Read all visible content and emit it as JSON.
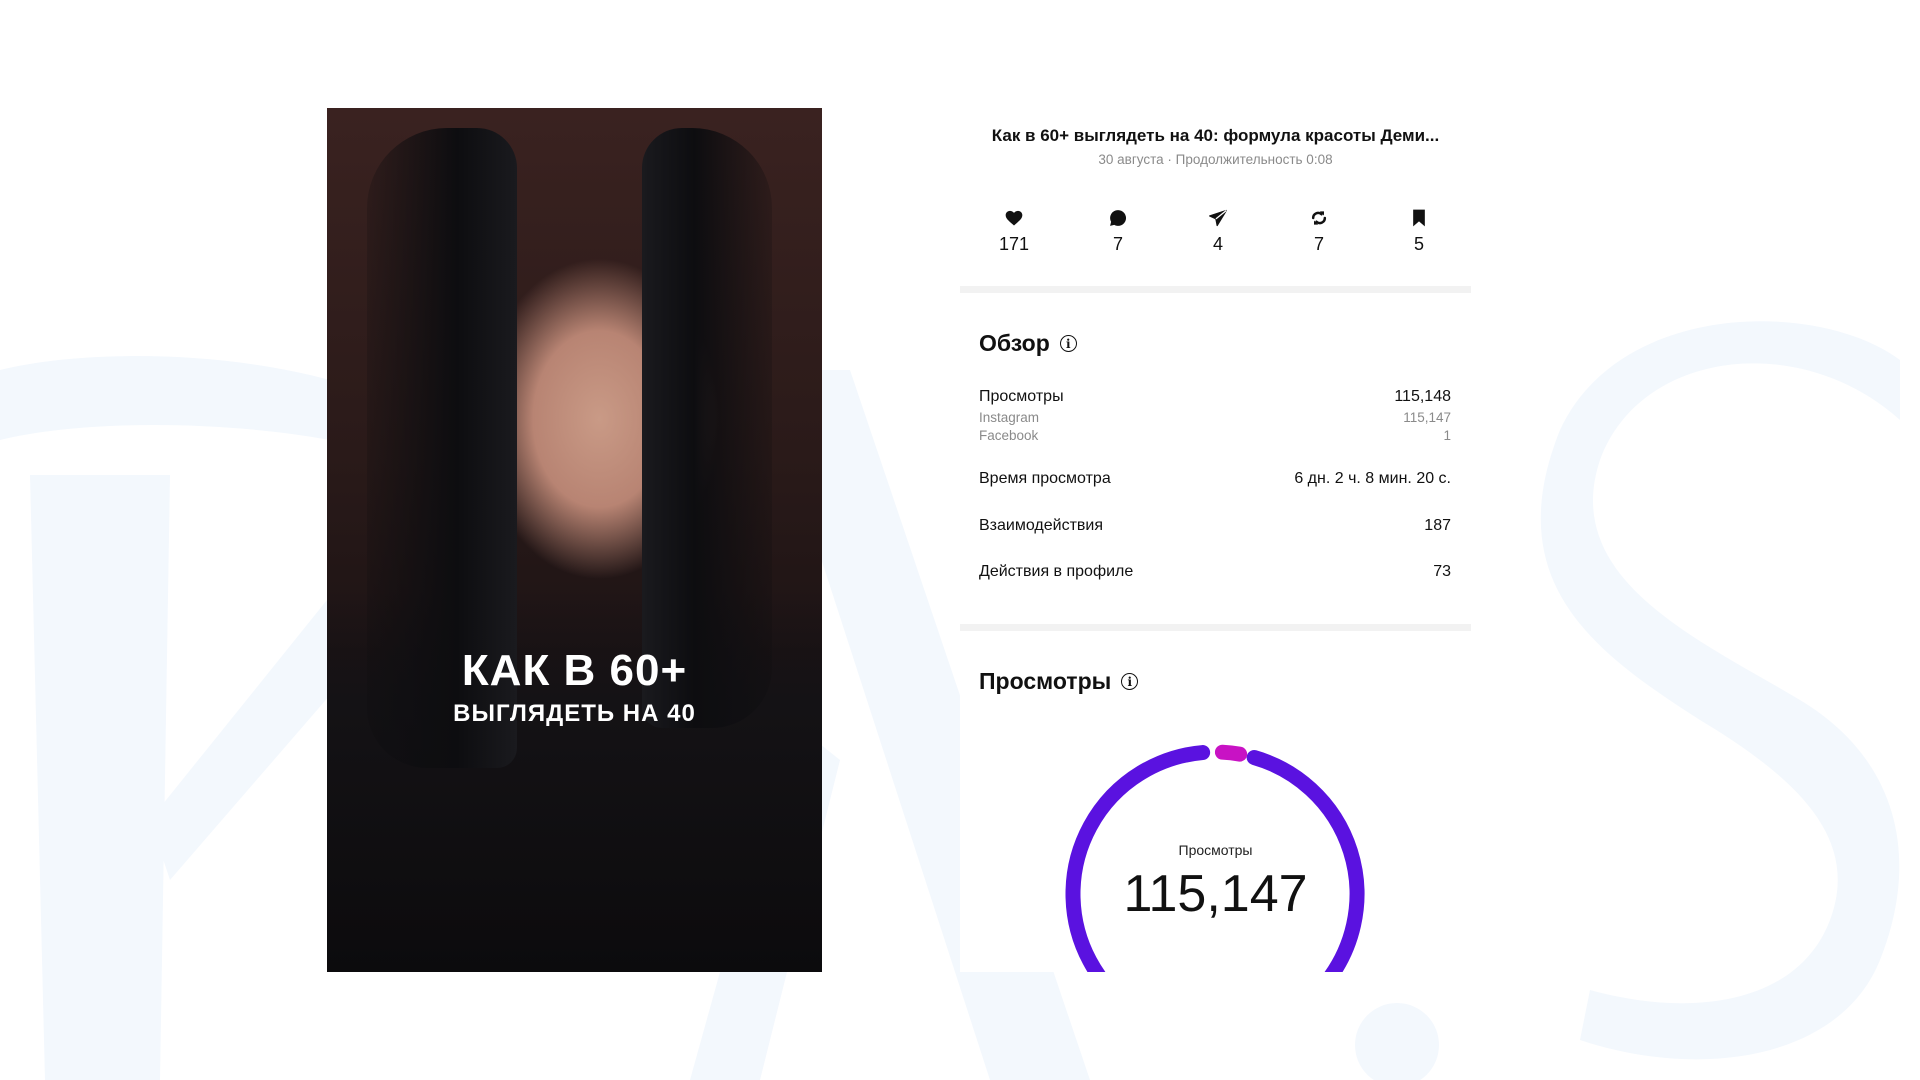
{
  "post": {
    "title": "Как в 60+ выглядеть на 40: формула красоты Деми...",
    "subtitle": "30 августа · Продолжительность 0:08",
    "overlay_line1": "КАК В 60+",
    "overlay_line2": "ВЫГЛЯДЕТЬ НА 40"
  },
  "stats": [
    {
      "icon": "heart-icon",
      "value": "171"
    },
    {
      "icon": "comment-icon",
      "value": "7"
    },
    {
      "icon": "share-icon",
      "value": "4"
    },
    {
      "icon": "repost-icon",
      "value": "7"
    },
    {
      "icon": "bookmark-icon",
      "value": "5"
    }
  ],
  "overview": {
    "heading": "Обзор",
    "rows": [
      {
        "label": "Просмотры",
        "value": "115,148"
      },
      {
        "label": "Instagram",
        "value": "115,147"
      },
      {
        "label": "Facebook",
        "value": "1"
      },
      {
        "label": "Время просмотра",
        "value": "6 дн. 2 ч. 8 мин. 20 с."
      },
      {
        "label": "Взаимодействия",
        "value": "187"
      },
      {
        "label": "Действия в профиле",
        "value": "73"
      }
    ]
  },
  "views": {
    "heading": "Просмотры",
    "center_label": "Просмотры",
    "center_value": "115,147",
    "colors": {
      "primary": "#5a12e0",
      "secondary": "#c812c4"
    }
  }
}
